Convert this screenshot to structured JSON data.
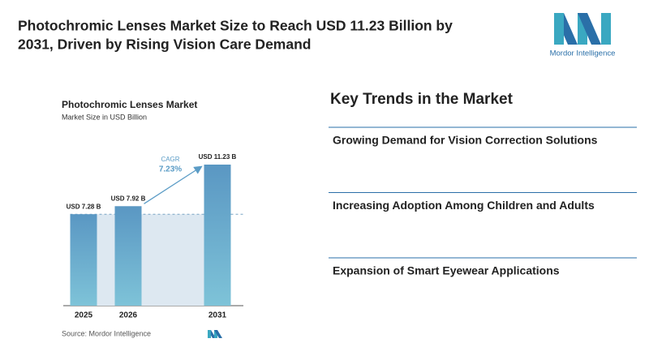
{
  "header": {
    "title_line1": "Photochromic Lenses Market Size to Reach USD 11.23 Billion by",
    "title_line2": "2031, Driven by Rising Vision Care Demand",
    "logo": "Mordor Intelligence"
  },
  "chart_data": {
    "type": "bar",
    "title": "Photochromic Lenses Market",
    "subtitle": "Market Size in USD Billion",
    "categories": [
      "2025",
      "2026",
      "2031"
    ],
    "values": [
      7.28,
      7.92,
      11.23
    ],
    "value_labels": [
      "USD 7.28 B",
      "USD 7.92 B",
      "USD 11.23 B"
    ],
    "color": "#5b9cc6",
    "annotation": {
      "label": "CAGR",
      "value": "7.23%"
    },
    "source": "Source: Mordor Intelligence"
  },
  "trends": {
    "title": "Key Trends in the Market",
    "items": [
      "Growing Demand for Vision Correction Solutions",
      "Increasing Adoption Among Children and Adults",
      "Expansion of Smart Eyewear Applications"
    ]
  }
}
